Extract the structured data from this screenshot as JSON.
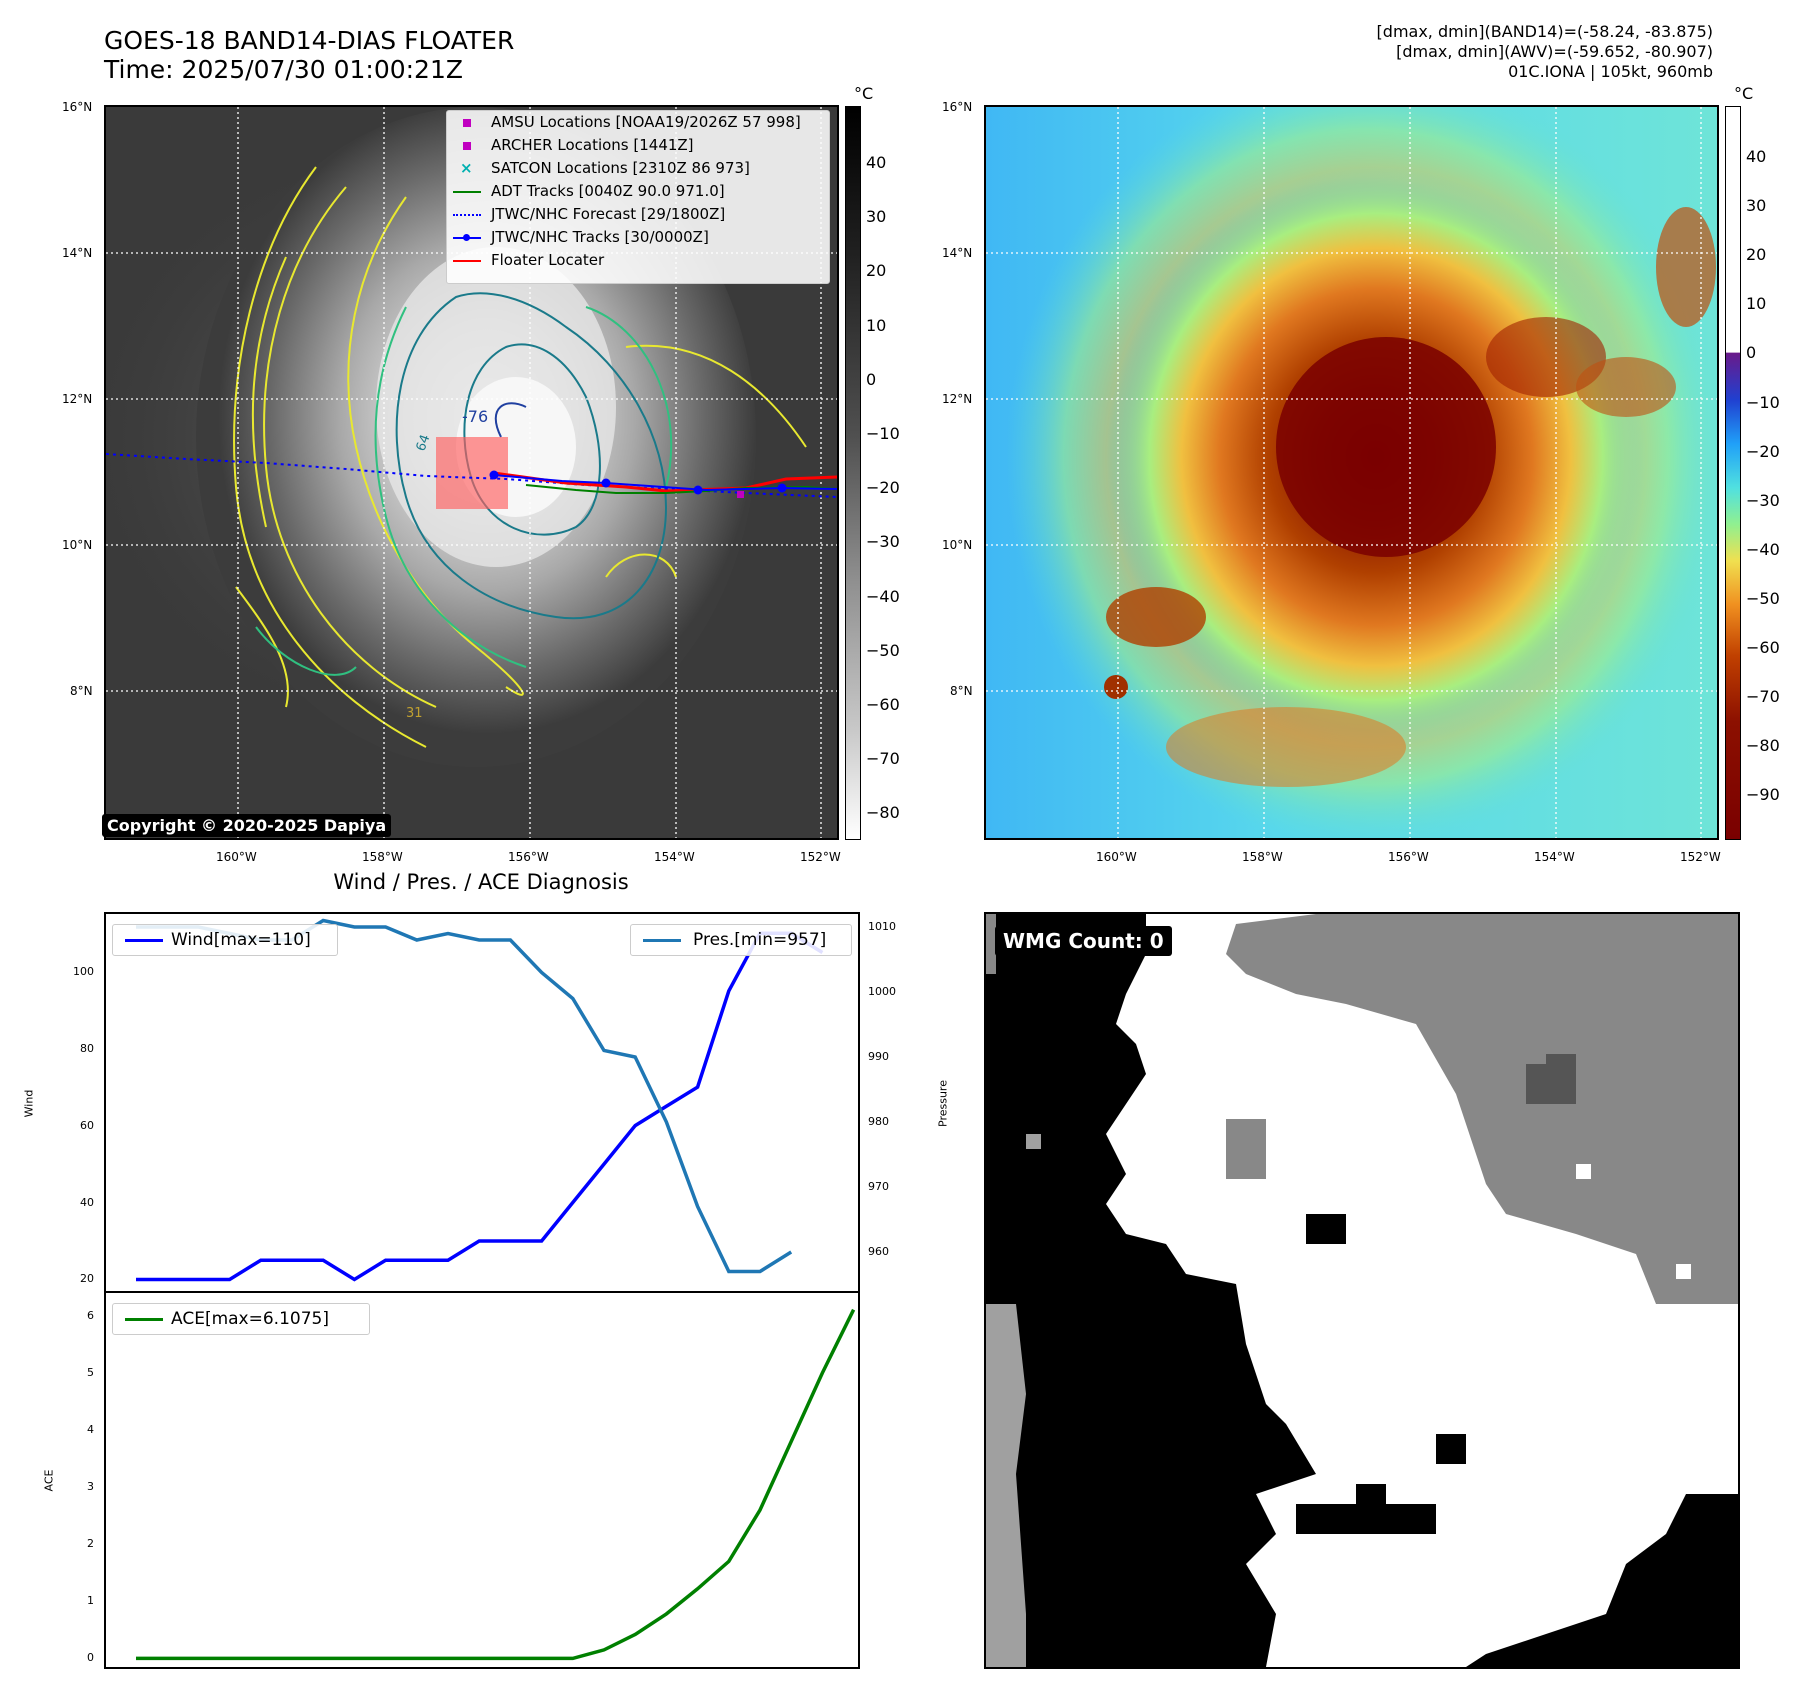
{
  "header": {
    "title_line1": "GOES-18 BAND14-DIAS FLOATER",
    "title_line2": "Time: 2025/07/30 01:00:21Z",
    "stats_line1": "[dmax, dmin](BAND14)=(-58.24, -83.875)",
    "stats_line2": "[dmax, dmin](AWV)=(-59.652, -80.907)",
    "stats_line3": "01C.IONA | 105kt, 960mb"
  },
  "map": {
    "lat_ticks": [
      "16°N",
      "14°N",
      "12°N",
      "10°N",
      "8°N"
    ],
    "lon_ticks": [
      "160°W",
      "158°W",
      "156°W",
      "154°W",
      "152°W"
    ],
    "contour_labels": [
      "-76",
      "64",
      "31"
    ],
    "copyright": "Copyright © 2020-2025 Dapiya",
    "unit": "°C"
  },
  "ir_colorbar_ticks": [
    "40",
    "30",
    "20",
    "10",
    "0",
    "−10",
    "−20",
    "−30",
    "−40",
    "−50",
    "−60",
    "−70",
    "−80"
  ],
  "awv_colorbar_ticks": [
    "40",
    "30",
    "20",
    "10",
    "0",
    "−10",
    "−20",
    "−30",
    "−40",
    "−50",
    "−60",
    "−70",
    "−80",
    "−90"
  ],
  "legend": {
    "items": [
      {
        "label": "AMSU Locations [NOAA19/2026Z 57 998]",
        "color": "#c000c0"
      },
      {
        "label": "ARCHER Locations [1441Z]",
        "color": "#c000c0"
      },
      {
        "label": "SATCON Locations [2310Z 86 973]",
        "color": "#00b0b0"
      },
      {
        "label": "ADT Tracks [0040Z 90.0 971.0]",
        "color": "#008000"
      },
      {
        "label": "JTWC/NHC Forecast [29/1800Z]",
        "color": "#0000ff"
      },
      {
        "label": "JTWC/NHC Tracks [30/0000Z]",
        "color": "#0000ff"
      },
      {
        "label": "Floater Locater",
        "color": "#ff0000"
      }
    ]
  },
  "diagnosis": {
    "title": "Wind / Pres. / ACE Diagnosis",
    "wind_legend": "Wind[max=110]",
    "pres_legend": "Pres.[min=957]",
    "ace_legend": "ACE[max=6.1075]",
    "wind_ylabel": "Wind",
    "pres_ylabel": "Pressure",
    "ace_ylabel": "ACE"
  },
  "wmg": {
    "label": "WMG Count: 0"
  },
  "colors": {
    "wind": "#0000ff",
    "pressure": "#1f77b4",
    "ace": "#008000"
  },
  "chart_data": [
    {
      "type": "line",
      "title": "Wind / Pres. / ACE Diagnosis",
      "ylabel": "Wind",
      "ylim": [
        17,
        115
      ],
      "yticks": [
        20,
        40,
        60,
        80,
        100
      ],
      "series": [
        {
          "name": "Wind[max=110]",
          "values": [
            20,
            20,
            20,
            20,
            25,
            25,
            25,
            20,
            25,
            25,
            25,
            30,
            30,
            30,
            40,
            50,
            60,
            65,
            70,
            95,
            110,
            110,
            105
          ]
        }
      ]
    },
    {
      "type": "line",
      "ylabel": "Pressure",
      "ylim": [
        954,
        1012
      ],
      "yticks": [
        960,
        970,
        980,
        990,
        1000,
        1010
      ],
      "series": [
        {
          "name": "Pres.[min=957]",
          "values": [
            1010,
            1010,
            1010,
            1009,
            1008,
            1008,
            1011,
            1010,
            1010,
            1008,
            1009,
            1008,
            1008,
            1003,
            999,
            991,
            990,
            980,
            967,
            957,
            957,
            960
          ]
        }
      ]
    },
    {
      "type": "line",
      "ylabel": "ACE",
      "ylim": [
        -0.15,
        6.4
      ],
      "yticks": [
        0,
        1,
        2,
        3,
        4,
        5,
        6
      ],
      "series": [
        {
          "name": "ACE[max=6.1075]",
          "values": [
            0,
            0,
            0,
            0,
            0,
            0,
            0,
            0,
            0,
            0,
            0,
            0,
            0,
            0,
            0,
            0.15,
            0.42,
            0.78,
            1.22,
            1.7,
            2.6,
            3.8,
            5.0,
            6.1075
          ]
        }
      ]
    }
  ]
}
